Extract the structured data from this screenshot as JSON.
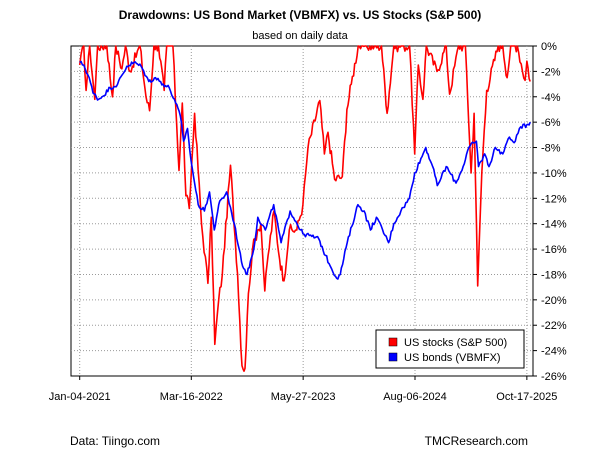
{
  "chart_data": {
    "type": "line",
    "title": "Drawdowns: US Bond Market (VBMFX) vs. US Stocks (S&P 500)",
    "subtitle": "based on daily data",
    "xlabel": "",
    "ylabel": "",
    "x_ticks": [
      "Jan-04-2021",
      "Mar-16-2022",
      "May-27-2023",
      "Aug-06-2024",
      "Oct-17-2025"
    ],
    "x_range": [
      "2020-12-01",
      "2025-11-10"
    ],
    "y_ticks": [
      "0%",
      "-2%",
      "-4%",
      "-6%",
      "-8%",
      "-10%",
      "-12%",
      "-14%",
      "-16%",
      "-18%",
      "-20%",
      "-22%",
      "-24%",
      "-26%"
    ],
    "ylim": [
      -26,
      0
    ],
    "y_axis_side": "right",
    "grid": true,
    "legend_position": "bottom-right",
    "series": [
      {
        "name": "US stocks (S&P 500)",
        "color": "#ff0000",
        "points": [
          [
            "2021-01-04",
            -1.5
          ],
          [
            "2021-01-20",
            0
          ],
          [
            "2021-01-29",
            -3.5
          ],
          [
            "2021-02-12",
            0
          ],
          [
            "2021-03-04",
            -4.2
          ],
          [
            "2021-03-15",
            0
          ],
          [
            "2021-04-20",
            0
          ],
          [
            "2021-05-12",
            -4
          ],
          [
            "2021-05-25",
            0
          ],
          [
            "2021-06-18",
            -1.8
          ],
          [
            "2021-07-02",
            0
          ],
          [
            "2021-07-19",
            -2
          ],
          [
            "2021-08-27",
            0
          ],
          [
            "2021-09-20",
            -4
          ],
          [
            "2021-10-04",
            -5.1
          ],
          [
            "2021-10-21",
            0
          ],
          [
            "2021-11-08",
            0
          ],
          [
            "2021-11-30",
            -3.5
          ],
          [
            "2021-12-10",
            0
          ],
          [
            "2022-01-03",
            0
          ],
          [
            "2022-01-27",
            -9.8
          ],
          [
            "2022-02-09",
            -4.5
          ],
          [
            "2022-02-23",
            -11.8
          ],
          [
            "2022-03-08",
            -12.8
          ],
          [
            "2022-03-29",
            -5.3
          ],
          [
            "2022-04-25",
            -14
          ],
          [
            "2022-05-20",
            -18.7
          ],
          [
            "2022-06-02",
            -13.5
          ],
          [
            "2022-06-16",
            -23.5
          ],
          [
            "2022-07-01",
            -20
          ],
          [
            "2022-07-15",
            -18
          ],
          [
            "2022-08-16",
            -9.4
          ],
          [
            "2022-09-13",
            -18
          ],
          [
            "2022-09-30",
            -25.2
          ],
          [
            "2022-10-12",
            -25.4
          ],
          [
            "2022-10-25",
            -19.5
          ],
          [
            "2022-11-10",
            -16
          ],
          [
            "2022-11-30",
            -14.5
          ],
          [
            "2022-12-13",
            -14
          ],
          [
            "2022-12-28",
            -19.3
          ],
          [
            "2023-01-10",
            -16.5
          ],
          [
            "2023-02-02",
            -13
          ],
          [
            "2023-02-24",
            -16.8
          ],
          [
            "2023-03-13",
            -18.5
          ],
          [
            "2023-04-03",
            -14.5
          ],
          [
            "2023-05-02",
            -14.5
          ],
          [
            "2023-05-26",
            -12.5
          ],
          [
            "2023-06-15",
            -8
          ],
          [
            "2023-07-31",
            -4.3
          ],
          [
            "2023-08-18",
            -8.5
          ],
          [
            "2023-09-01",
            -6.8
          ],
          [
            "2023-09-27",
            -10.5
          ],
          [
            "2023-10-27",
            -10.3
          ],
          [
            "2023-11-14",
            -5
          ],
          [
            "2023-12-01",
            -3
          ],
          [
            "2023-12-28",
            0
          ],
          [
            "2024-01-24",
            0
          ],
          [
            "2024-03-28",
            0
          ],
          [
            "2024-04-19",
            -5.3
          ],
          [
            "2024-05-15",
            0
          ],
          [
            "2024-06-18",
            0
          ],
          [
            "2024-07-16",
            0
          ],
          [
            "2024-08-05",
            -8.5
          ],
          [
            "2024-08-19",
            -1.5
          ],
          [
            "2024-09-06",
            -4.2
          ],
          [
            "2024-09-19",
            0
          ],
          [
            "2024-10-31",
            -2
          ],
          [
            "2024-12-06",
            0
          ],
          [
            "2024-12-19",
            -3.8
          ],
          [
            "2025-01-23",
            0
          ],
          [
            "2025-02-19",
            0
          ],
          [
            "2025-03-13",
            -10
          ],
          [
            "2025-03-25",
            -5.3
          ],
          [
            "2025-04-08",
            -18.9
          ],
          [
            "2025-04-24",
            -10
          ],
          [
            "2025-05-13",
            -3.5
          ],
          [
            "2025-06-27",
            0
          ],
          [
            "2025-07-15",
            0
          ],
          [
            "2025-08-01",
            -2.5
          ],
          [
            "2025-08-15",
            0
          ],
          [
            "2025-09-10",
            0
          ],
          [
            "2025-10-10",
            -2.7
          ],
          [
            "2025-10-17",
            -1.2
          ],
          [
            "2025-10-30",
            -2.8
          ]
        ]
      },
      {
        "name": "US bonds (VBMFX)",
        "color": "#0000ff",
        "points": [
          [
            "2021-01-04",
            -1.3
          ],
          [
            "2021-01-20",
            -1.5
          ],
          [
            "2021-02-10",
            -2.5
          ],
          [
            "2021-02-25",
            -3.7
          ],
          [
            "2021-03-19",
            -4.2
          ],
          [
            "2021-04-01",
            -4
          ],
          [
            "2021-05-03",
            -3.3
          ],
          [
            "2021-06-01",
            -3
          ],
          [
            "2021-07-07",
            -1.6
          ],
          [
            "2021-08-04",
            -1.3
          ],
          [
            "2021-09-01",
            -1.6
          ],
          [
            "2021-10-01",
            -2.8
          ],
          [
            "2021-10-27",
            -2.5
          ],
          [
            "2021-11-26",
            -3
          ],
          [
            "2021-12-20",
            -3.3
          ],
          [
            "2022-01-14",
            -4.5
          ],
          [
            "2022-02-01",
            -5.5
          ],
          [
            "2022-02-14",
            -7.5
          ],
          [
            "2022-03-01",
            -6.5
          ],
          [
            "2022-03-15",
            -9
          ],
          [
            "2022-03-29",
            -10.8
          ],
          [
            "2022-04-12",
            -12.5
          ],
          [
            "2022-05-06",
            -13
          ],
          [
            "2022-05-26",
            -11.5
          ],
          [
            "2022-06-14",
            -14.5
          ],
          [
            "2022-07-01",
            -12.5
          ],
          [
            "2022-08-01",
            -11.5
          ],
          [
            "2022-08-31",
            -14
          ],
          [
            "2022-09-28",
            -17
          ],
          [
            "2022-10-20",
            -18
          ],
          [
            "2022-11-15",
            -16
          ],
          [
            "2022-12-01",
            -13.5
          ],
          [
            "2022-12-30",
            -14.5
          ],
          [
            "2023-02-01",
            -12.5
          ],
          [
            "2023-03-02",
            -15.5
          ],
          [
            "2023-04-06",
            -13
          ],
          [
            "2023-05-26",
            -14.8
          ],
          [
            "2023-06-30",
            -15
          ],
          [
            "2023-07-27",
            -15.2
          ],
          [
            "2023-08-22",
            -16.5
          ],
          [
            "2023-10-05",
            -18.3
          ],
          [
            "2023-10-19",
            -18
          ],
          [
            "2023-11-15",
            -15.5
          ],
          [
            "2023-12-27",
            -12.5
          ],
          [
            "2024-01-20",
            -13
          ],
          [
            "2024-02-14",
            -14.5
          ],
          [
            "2024-03-08",
            -13.5
          ],
          [
            "2024-04-25",
            -15.5
          ],
          [
            "2024-05-15",
            -14
          ],
          [
            "2024-06-12",
            -13
          ],
          [
            "2024-07-15",
            -12
          ],
          [
            "2024-08-05",
            -10
          ],
          [
            "2024-09-17",
            -8
          ],
          [
            "2024-10-14",
            -9.5
          ],
          [
            "2024-11-01",
            -11
          ],
          [
            "2024-12-06",
            -9.5
          ],
          [
            "2025-01-13",
            -10.8
          ],
          [
            "2025-02-10",
            -9.5
          ],
          [
            "2025-03-04",
            -8
          ],
          [
            "2025-04-03",
            -7.5
          ],
          [
            "2025-04-11",
            -9.5
          ],
          [
            "2025-05-05",
            -8.5
          ],
          [
            "2025-05-22",
            -9.5
          ],
          [
            "2025-06-16",
            -8
          ],
          [
            "2025-07-15",
            -8.5
          ],
          [
            "2025-08-05",
            -7.3
          ],
          [
            "2025-09-02",
            -7.5
          ],
          [
            "2025-09-18",
            -6.5
          ],
          [
            "2025-10-17",
            -6.2
          ],
          [
            "2025-10-30",
            -6
          ]
        ]
      }
    ]
  },
  "footer": {
    "source": "Data: Tiingo.com",
    "site": "TMCResearch.com"
  }
}
